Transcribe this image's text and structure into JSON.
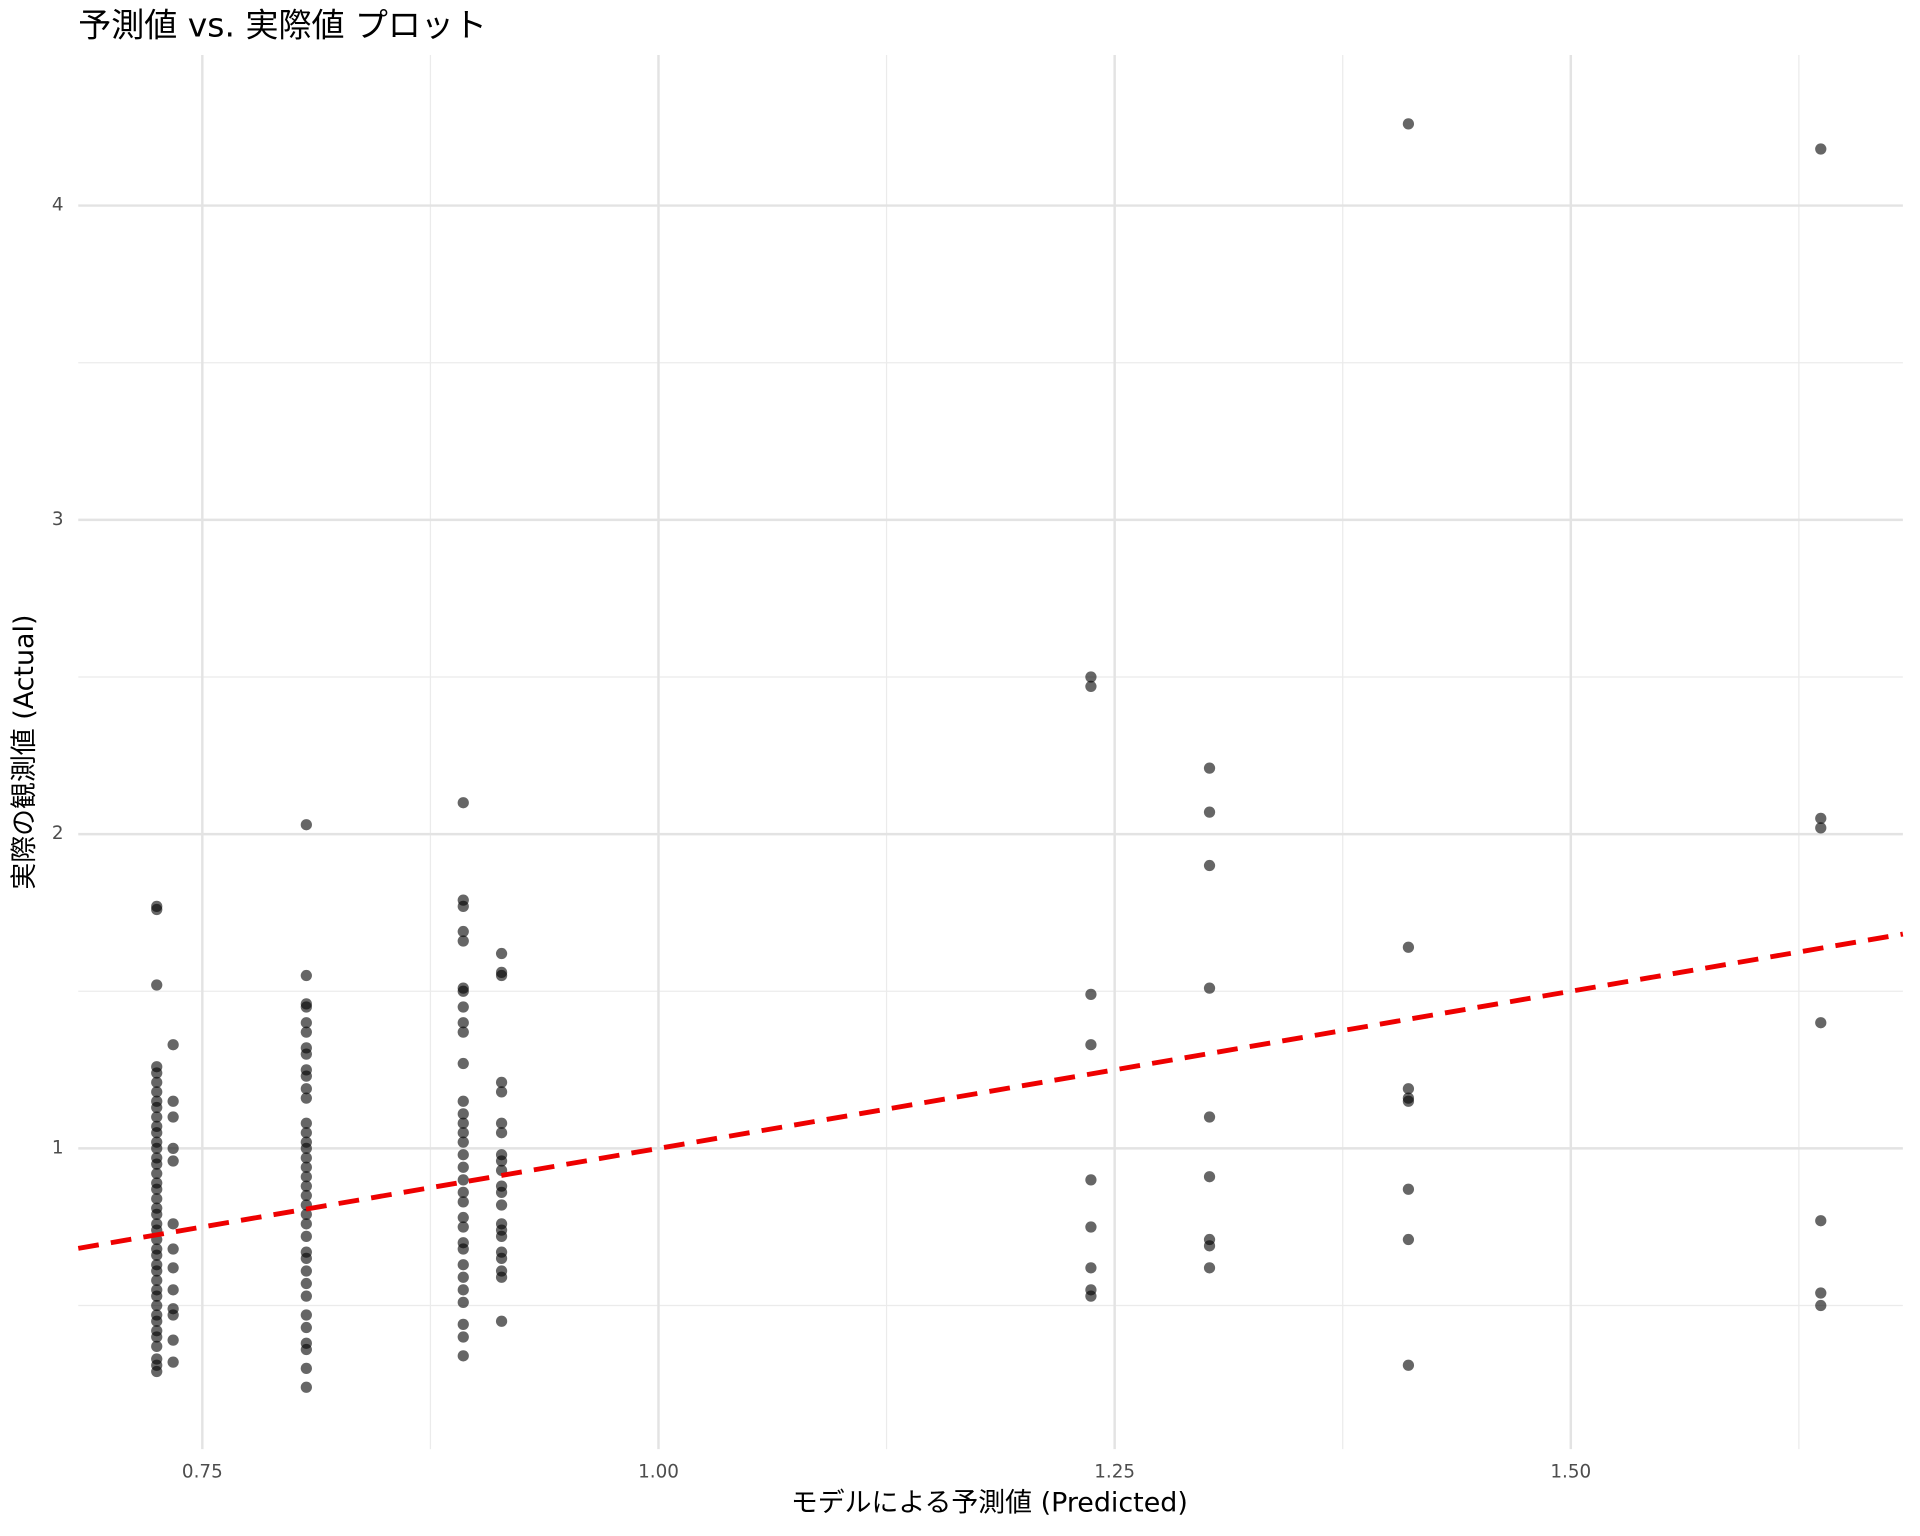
{
  "chart_data": {
    "type": "scatter",
    "title": "予測値 vs. 実際値 プロット",
    "x_label": "モデルによる予測値 (Predicted)",
    "y_label": "実際の観測値 (Actual)",
    "xlim": [
      0.682,
      1.682
    ],
    "ylim": [
      0.043,
      4.479
    ],
    "xticks": [
      {
        "value": 0.75,
        "label": "0.75"
      },
      {
        "value": 1.0,
        "label": "1.00"
      },
      {
        "value": 1.25,
        "label": "1.25"
      },
      {
        "value": 1.5,
        "label": "1.50"
      }
    ],
    "yticks": [
      1,
      2,
      3,
      4
    ],
    "xminor": [
      0.875,
      1.125,
      1.375,
      1.625
    ],
    "yminor": [
      0.5,
      1.5,
      2.5,
      3.5
    ],
    "grid": true,
    "color": "#000000",
    "point_opacity": 0.6,
    "identity_line": true,
    "identity_line_color": "#ee0000",
    "x": [
      0.725,
      0.725,
      0.725,
      0.725,
      0.725,
      0.725,
      0.725,
      0.725,
      0.725,
      0.725,
      0.725,
      0.725,
      0.725,
      0.725,
      0.725,
      0.725,
      0.725,
      0.725,
      0.725,
      0.725,
      0.725,
      0.725,
      0.725,
      0.725,
      0.725,
      0.725,
      0.725,
      0.725,
      0.725,
      0.725,
      0.725,
      0.725,
      0.725,
      0.725,
      0.725,
      0.725,
      0.725,
      0.725,
      0.725,
      0.725,
      0.725,
      0.734,
      0.734,
      0.734,
      0.734,
      0.734,
      0.734,
      0.734,
      0.734,
      0.734,
      0.734,
      0.734,
      0.734,
      0.734,
      0.807,
      0.807,
      0.807,
      0.807,
      0.807,
      0.807,
      0.807,
      0.807,
      0.807,
      0.807,
      0.807,
      0.807,
      0.807,
      0.807,
      0.807,
      0.807,
      0.807,
      0.807,
      0.807,
      0.807,
      0.807,
      0.807,
      0.807,
      0.807,
      0.807,
      0.807,
      0.807,
      0.807,
      0.807,
      0.807,
      0.807,
      0.807,
      0.807,
      0.807,
      0.807,
      0.807,
      0.893,
      0.893,
      0.893,
      0.893,
      0.893,
      0.893,
      0.893,
      0.893,
      0.893,
      0.893,
      0.893,
      0.893,
      0.893,
      0.893,
      0.893,
      0.893,
      0.893,
      0.893,
      0.893,
      0.893,
      0.893,
      0.893,
      0.893,
      0.893,
      0.893,
      0.893,
      0.893,
      0.893,
      0.893,
      0.893,
      0.893,
      0.893,
      0.914,
      0.914,
      0.914,
      0.914,
      0.914,
      0.914,
      0.914,
      0.914,
      0.914,
      0.914,
      0.914,
      0.914,
      0.914,
      0.914,
      0.914,
      0.914,
      0.914,
      0.914,
      0.914,
      0.914,
      0.914,
      1.237,
      1.237,
      1.237,
      1.237,
      1.237,
      1.237,
      1.237,
      1.237,
      1.237,
      1.302,
      1.302,
      1.302,
      1.302,
      1.302,
      1.302,
      1.302,
      1.302,
      1.302,
      1.411,
      1.411,
      1.411,
      1.411,
      1.411,
      1.411,
      1.411,
      1.411,
      1.637,
      1.637,
      1.637,
      1.637,
      1.637,
      1.637,
      1.637
    ],
    "y": [
      1.77,
      1.76,
      1.52,
      1.26,
      1.24,
      1.21,
      1.18,
      1.15,
      1.13,
      1.1,
      1.07,
      1.05,
      1.02,
      1.0,
      0.97,
      0.95,
      0.92,
      0.89,
      0.87,
      0.84,
      0.81,
      0.79,
      0.76,
      0.74,
      0.71,
      0.68,
      0.66,
      0.63,
      0.61,
      0.58,
      0.55,
      0.53,
      0.5,
      0.47,
      0.45,
      0.42,
      0.4,
      0.37,
      0.33,
      0.31,
      0.29,
      1.33,
      1.15,
      1.1,
      1.0,
      0.96,
      0.76,
      0.68,
      0.62,
      0.55,
      0.49,
      0.47,
      0.39,
      0.32,
      2.03,
      1.55,
      1.46,
      1.45,
      1.4,
      1.37,
      1.32,
      1.3,
      1.25,
      1.23,
      1.19,
      1.16,
      1.08,
      1.05,
      1.02,
      1.0,
      0.97,
      0.94,
      0.91,
      0.88,
      0.85,
      0.82,
      0.79,
      0.76,
      0.72,
      0.67,
      0.65,
      0.61,
      0.57,
      0.53,
      0.47,
      0.43,
      0.38,
      0.36,
      0.3,
      0.24,
      2.1,
      1.79,
      1.77,
      1.69,
      1.66,
      1.51,
      1.5,
      1.45,
      1.4,
      1.37,
      1.27,
      1.15,
      1.11,
      1.08,
      1.05,
      1.02,
      0.98,
      0.94,
      0.9,
      0.86,
      0.83,
      0.78,
      0.75,
      0.7,
      0.68,
      0.63,
      0.59,
      0.55,
      0.51,
      0.44,
      0.4,
      0.34,
      1.62,
      1.56,
      1.55,
      1.21,
      1.18,
      1.08,
      1.05,
      0.98,
      0.96,
      0.93,
      0.88,
      0.86,
      0.82,
      0.76,
      0.74,
      0.72,
      0.67,
      0.65,
      0.61,
      0.59,
      0.45,
      2.5,
      2.47,
      1.49,
      1.33,
      0.9,
      0.75,
      0.62,
      0.55,
      0.53,
      2.21,
      2.07,
      1.9,
      1.51,
      1.1,
      0.91,
      0.71,
      0.69,
      0.62,
      4.26,
      1.64,
      1.19,
      1.16,
      1.15,
      0.87,
      0.71,
      0.31,
      4.18,
      2.05,
      2.02,
      1.4,
      0.77,
      0.54,
      0.5
    ]
  }
}
